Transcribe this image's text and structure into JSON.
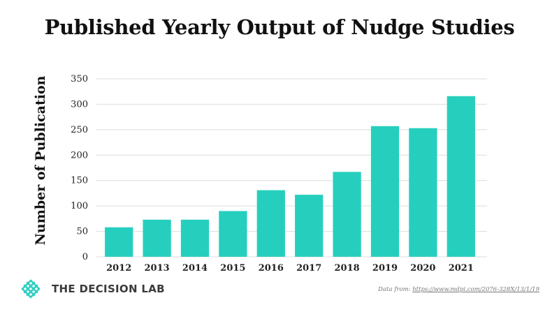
{
  "title": "Published Yearly Output of Nudge Studies",
  "brand": {
    "name": "THE DECISION LAB",
    "color": "#2ecfc0"
  },
  "source": {
    "prefix": "Data from: ",
    "link": "https://www.mdpi.com/2076-328X/13/1/19"
  },
  "chart_data": {
    "type": "bar",
    "title": "Published Yearly Output of Nudge Studies",
    "xlabel": "",
    "ylabel": "Number of Publication",
    "categories": [
      "2012",
      "2013",
      "2014",
      "2015",
      "2016",
      "2017",
      "2018",
      "2019",
      "2020",
      "2021"
    ],
    "values": [
      58,
      73,
      73,
      90,
      131,
      122,
      167,
      257,
      253,
      316
    ],
    "ylim": [
      0,
      350
    ],
    "yticks": [
      0,
      50,
      100,
      150,
      200,
      250,
      300,
      350
    ],
    "grid": true,
    "bar_color": "#26cfbd",
    "grid_color": "#dddddd"
  }
}
